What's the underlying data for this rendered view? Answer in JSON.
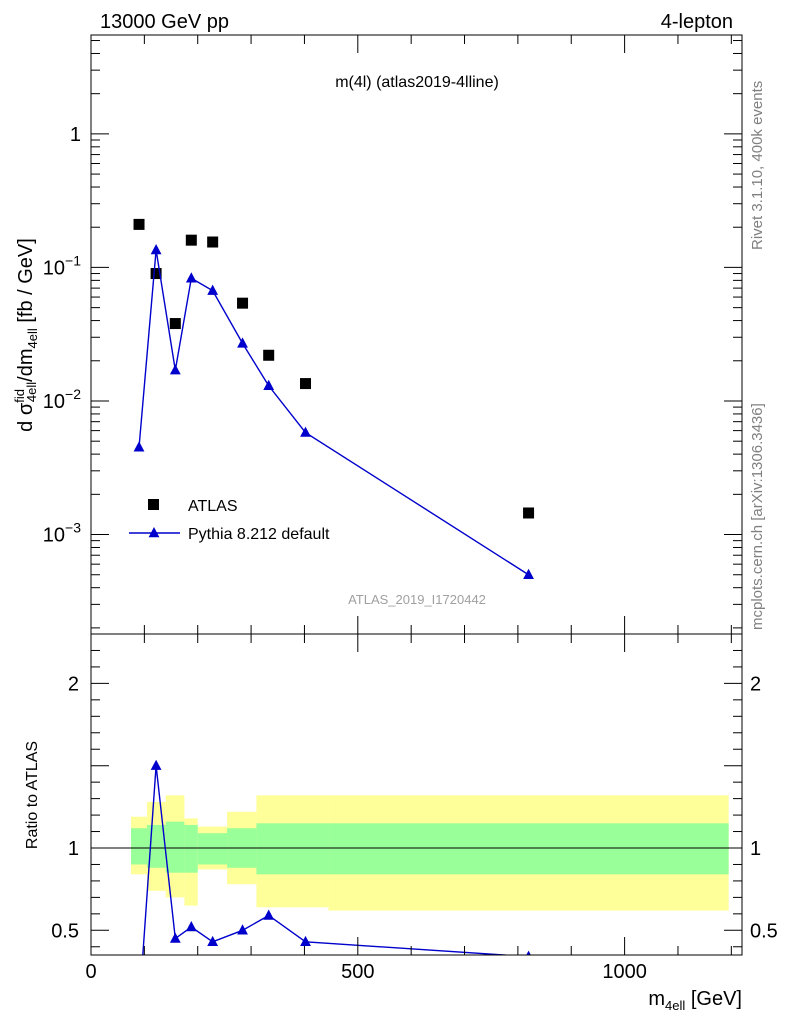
{
  "header": {
    "left": "13000 GeV pp",
    "right": "4-lepton"
  },
  "side_text": {
    "rivet": "Rivet 3.1.10,  400k events",
    "mcplots": "mcplots.cern.ch [arXiv:1306.3436]"
  },
  "chart_data": [
    {
      "type": "scatter",
      "title": "m(4l) (atlas2019-4lline)",
      "watermark": "ATLAS_2019_I1720442",
      "ylabel": "d σ^fid_4ell/dm_4ell [fb / GeV]",
      "yscale": "log",
      "ylim": [
        0.00018,
        5.5
      ],
      "xlim": [
        0,
        1220
      ],
      "y_ticks": [
        {
          "value": 0.001,
          "base": "10",
          "exp": "−3"
        },
        {
          "value": 0.01,
          "base": "10",
          "exp": "−2"
        },
        {
          "value": 0.1,
          "base": "10",
          "exp": "−1"
        },
        {
          "value": 1,
          "base": "1",
          "exp": ""
        }
      ],
      "legend": {
        "placement": "bottom-left",
        "entries": [
          {
            "name": "ATLAS",
            "marker": "square",
            "color": "#000000"
          },
          {
            "name": "Pythia 8.212 default",
            "marker": "triangle",
            "color": "#0000cc"
          }
        ]
      },
      "series": [
        {
          "name": "ATLAS",
          "marker": "square",
          "color": "#000000",
          "x": [
            90,
            122,
            158,
            188,
            228,
            284,
            333,
            402,
            820
          ],
          "y": [
            0.21,
            0.09,
            0.038,
            0.16,
            0.155,
            0.054,
            0.022,
            0.0135,
            0.00145
          ]
        },
        {
          "name": "Pythia 8.212 default",
          "marker": "triangle",
          "line": true,
          "color": "#0000cc",
          "x": [
            90,
            122,
            158,
            188,
            228,
            284,
            333,
            402,
            820
          ],
          "y": [
            0.0045,
            0.135,
            0.017,
            0.083,
            0.067,
            0.027,
            0.013,
            0.0058,
            0.0005
          ]
        }
      ]
    },
    {
      "type": "line",
      "ylabel": "Ratio to ATLAS",
      "xlabel": "m_4ell [GeV]",
      "xlim": [
        0,
        1220
      ],
      "ylim": [
        0.35,
        2.3
      ],
      "x_ticks": [
        0,
        500,
        1000
      ],
      "y_ticks": [
        0.5,
        1,
        2
      ],
      "reference_line": 1,
      "bands": {
        "edges": [
          75,
          105,
          140,
          175,
          200,
          255,
          310,
          445,
          1195
        ],
        "inner_color": "#99ff99",
        "outer_color": "#ffff99",
        "inner_low": [
          0.9,
          0.88,
          0.85,
          0.85,
          0.9,
          0.88,
          0.84,
          0.84
        ],
        "inner_high": [
          1.12,
          1.14,
          1.16,
          1.14,
          1.09,
          1.12,
          1.15,
          1.15
        ],
        "outer_low": [
          0.84,
          0.74,
          0.7,
          0.65,
          0.87,
          0.78,
          0.64,
          0.62
        ],
        "outer_high": [
          1.19,
          1.28,
          1.32,
          1.18,
          1.13,
          1.22,
          1.32,
          1.32
        ]
      },
      "series": [
        {
          "name": "Pythia 8.212 default",
          "marker": "triangle",
          "color": "#0000cc",
          "x": [
            90,
            122,
            158,
            188,
            228,
            284,
            333,
            402,
            820
          ],
          "y": [
            0.021,
            1.5,
            0.45,
            0.52,
            0.43,
            0.5,
            0.59,
            0.43,
            0.34
          ]
        }
      ]
    }
  ]
}
